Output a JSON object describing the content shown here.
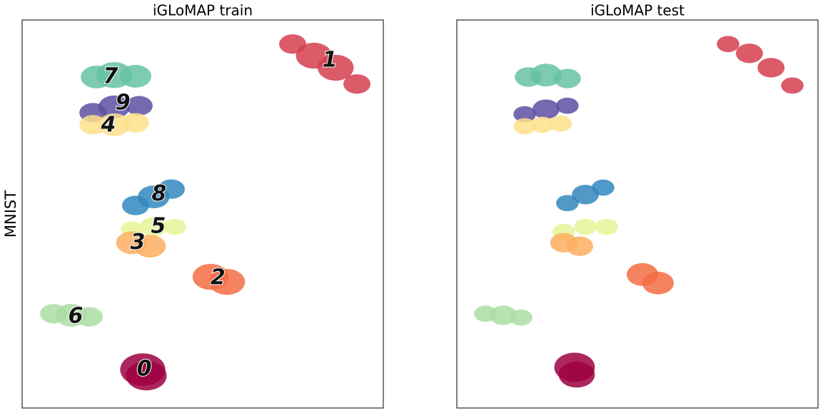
{
  "chart_data": [
    {
      "type": "scatter",
      "title": "iGLoMAP train",
      "ylabel": "MNIST",
      "xlim": [
        0,
        100
      ],
      "ylim": [
        0,
        100
      ],
      "series": [
        {
          "color": "#d53e4f",
          "x": [
            74.9,
            80.8,
            86.8,
            92.7
          ],
          "y": [
            93.8,
            90.8,
            87.7,
            83.5
          ],
          "sizes": [
            3,
            4,
            4,
            3
          ]
        },
        {
          "color": "#66c2a5",
          "x": [
            20.6,
            25.5,
            31.4
          ],
          "y": [
            85.3,
            85.8,
            85.5
          ],
          "sizes": [
            3.5,
            4,
            3.5
          ]
        },
        {
          "color": "#5e4fa2",
          "x": [
            19.6,
            25.5,
            32.4
          ],
          "y": [
            76.1,
            77.6,
            77.9
          ],
          "sizes": [
            3,
            3.5,
            3
          ]
        },
        {
          "color": "#fee08b",
          "x": [
            19.6,
            25.5,
            31.4
          ],
          "y": [
            73.0,
            73.0,
            73.5
          ],
          "sizes": [
            3,
            3.5,
            3
          ]
        },
        {
          "color": "#3288bd",
          "x": [
            31.4,
            36.4,
            41.3
          ],
          "y": [
            52.2,
            54.4,
            56.4
          ],
          "sizes": [
            3,
            3.5,
            3
          ]
        },
        {
          "color": "#e6f598",
          "x": [
            30.4,
            36.4,
            42.3
          ],
          "y": [
            46.0,
            46.7,
            46.7
          ],
          "sizes": [
            2.5,
            3,
            2.5
          ]
        },
        {
          "color": "#fdae61",
          "x": [
            30.4,
            35.4
          ],
          "y": [
            42.6,
            41.7
          ],
          "sizes": [
            3.5,
            3.5
          ]
        },
        {
          "color": "#f46d43",
          "x": [
            52.2,
            56.7
          ],
          "y": [
            33.8,
            32.5
          ],
          "sizes": [
            4,
            4
          ]
        },
        {
          "color": "#abdda4",
          "x": [
            8.7,
            13.6,
            18.6
          ],
          "y": [
            24.3,
            23.9,
            23.5
          ],
          "sizes": [
            3,
            3.5,
            3
          ]
        },
        {
          "color": "#9e0142",
          "x": [
            33.4,
            34.4
          ],
          "y": [
            9.9,
            8.3
          ],
          "sizes": [
            5,
            4.5
          ]
        }
      ],
      "annotations": [
        {
          "text": "1",
          "x": 85.2,
          "y": 89.5
        },
        {
          "text": "7",
          "x": 24.5,
          "y": 85.3
        },
        {
          "text": "9",
          "x": 27.9,
          "y": 78.5
        },
        {
          "text": "4",
          "x": 23.9,
          "y": 72.8
        },
        {
          "text": "8",
          "x": 37.9,
          "y": 55.1
        },
        {
          "text": "5",
          "x": 37.7,
          "y": 46.7
        },
        {
          "text": "3",
          "x": 32.0,
          "y": 42.6
        },
        {
          "text": "2",
          "x": 54.2,
          "y": 33.5
        },
        {
          "text": "6",
          "x": 14.8,
          "y": 23.5
        },
        {
          "text": "0",
          "x": 33.8,
          "y": 9.9
        }
      ]
    },
    {
      "type": "scatter",
      "title": "iGLoMAP test",
      "xlim": [
        0,
        100
      ],
      "ylim": [
        0,
        100
      ],
      "series": [
        {
          "color": "#d53e4f",
          "x": [
            75.1,
            81.0,
            87.0,
            92.9
          ],
          "y": [
            93.8,
            91.4,
            87.7,
            83.1
          ],
          "sizes": [
            2.5,
            3,
            3,
            2.5
          ]
        },
        {
          "color": "#66c2a5",
          "x": [
            19.8,
            24.7,
            30.6
          ],
          "y": [
            85.3,
            85.8,
            84.9
          ],
          "sizes": [
            3,
            3.5,
            3
          ]
        },
        {
          "color": "#5e4fa2",
          "x": [
            18.8,
            24.7,
            30.6
          ],
          "y": [
            75.7,
            77.0,
            77.9
          ],
          "sizes": [
            2.5,
            3,
            2.5
          ]
        },
        {
          "color": "#fee08b",
          "x": [
            18.8,
            23.7,
            28.7
          ],
          "y": [
            72.6,
            73.0,
            73.3
          ],
          "sizes": [
            2.5,
            2.5,
            2.5
          ]
        },
        {
          "color": "#3288bd",
          "x": [
            30.6,
            35.6,
            40.5
          ],
          "y": [
            52.8,
            55.0,
            56.8
          ],
          "sizes": [
            2.5,
            3,
            2.5
          ]
        },
        {
          "color": "#e6f598",
          "x": [
            29.6,
            35.6,
            41.5
          ],
          "y": [
            45.4,
            46.7,
            46.7
          ],
          "sizes": [
            2.5,
            2.5,
            2.5
          ]
        },
        {
          "color": "#fdae61",
          "x": [
            29.6,
            34.0
          ],
          "y": [
            42.6,
            41.7
          ],
          "sizes": [
            3,
            3
          ]
        },
        {
          "color": "#f46d43",
          "x": [
            51.4,
            55.7
          ],
          "y": [
            34.4,
            32.2
          ],
          "sizes": [
            3.5,
            3.5
          ]
        },
        {
          "color": "#abdda4",
          "x": [
            7.9,
            12.8,
            17.8
          ],
          "y": [
            24.3,
            23.9,
            23.3
          ],
          "sizes": [
            2.5,
            3,
            2.5
          ]
        },
        {
          "color": "#9e0142",
          "x": [
            32.6,
            33.2
          ],
          "y": [
            10.5,
            8.6
          ],
          "sizes": [
            4.5,
            4
          ]
        }
      ]
    }
  ]
}
